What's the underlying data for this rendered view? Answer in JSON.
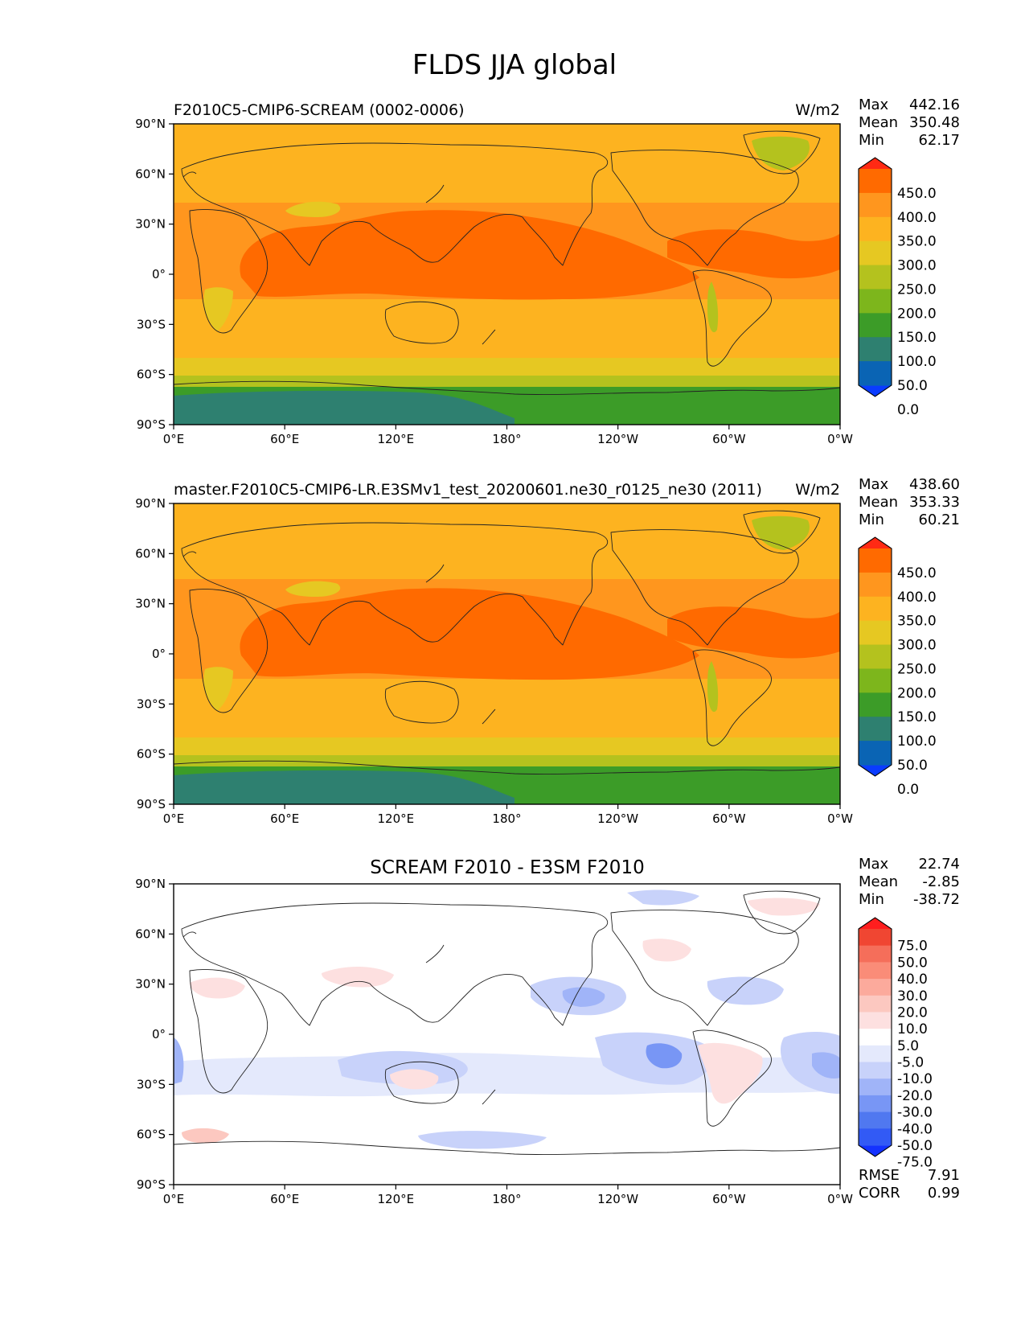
{
  "figure": {
    "title": "FLDS JJA global"
  },
  "axes": {
    "lat_labels": [
      "90°N",
      "60°N",
      "30°N",
      "0°",
      "30°S",
      "60°S",
      "90°S"
    ],
    "lon_labels": [
      "0°E",
      "60°E",
      "120°E",
      "180°",
      "120°W",
      "60°W",
      "0°W"
    ]
  },
  "palettes": {
    "abs": [
      "#0a3cff",
      "#0a64b4",
      "#2e8070",
      "#3c9c28",
      "#7db61c",
      "#b4c21e",
      "#e6c822",
      "#fdb320",
      "#ff961e",
      "#ff6a00",
      "#ff2a14"
    ],
    "diff": [
      "#1432ff",
      "#325af5",
      "#5078f0",
      "#7896f5",
      "#a0b4f8",
      "#c8d2fa",
      "#e4e9fc",
      "#ffffff",
      "#fde0e0",
      "#fcc8c0",
      "#fcaa9c",
      "#fa8c78",
      "#f56e5a",
      "#f04632",
      "#ff1e1e"
    ]
  },
  "panels": [
    {
      "left_title": "F2010C5-CMIP6-SCREAM (0002-0006)",
      "right_title": "W/m2",
      "stats": {
        "max_label": "Max",
        "max": "442.16",
        "mean_label": "Mean",
        "mean": "350.48",
        "min_label": "Min",
        "min": "62.17"
      },
      "colorbar_labels": [
        "450.0",
        "400.0",
        "350.0",
        "300.0",
        "250.0",
        "200.0",
        "150.0",
        "100.0",
        "50.0",
        "0.0"
      ]
    },
    {
      "left_title": "master.F2010C5-CMIP6-LR.E3SMv1_test_20200601.ne30_r0125_ne30 (2011)",
      "right_title": "W/m2",
      "stats": {
        "max_label": "Max",
        "max": "438.60",
        "mean_label": "Mean",
        "mean": "353.33",
        "min_label": "Min",
        "min": "60.21"
      },
      "colorbar_labels": [
        "450.0",
        "400.0",
        "350.0",
        "300.0",
        "250.0",
        "200.0",
        "150.0",
        "100.0",
        "50.0",
        "0.0"
      ]
    },
    {
      "center_title": "SCREAM F2010 - E3SM F2010",
      "stats": {
        "max_label": "Max",
        "max": "22.74",
        "mean_label": "Mean",
        "mean": "-2.85",
        "min_label": "Min",
        "min": "-38.72"
      },
      "colorbar_labels": [
        "75.0",
        "50.0",
        "40.0",
        "30.0",
        "20.0",
        "10.0",
        "5.0",
        "-5.0",
        "-10.0",
        "-20.0",
        "-30.0",
        "-40.0",
        "-50.0",
        "-75.0"
      ],
      "metrics": {
        "rmse_label": "RMSE",
        "rmse": "7.91",
        "corr_label": "CORR",
        "corr": "0.99"
      }
    }
  ],
  "chart_data": {
    "type": "heatmap",
    "title": "FLDS JJA global",
    "units": "W/m2",
    "x_range": [
      "0°E",
      "0°W"
    ],
    "y_range": [
      "90°S",
      "90°N"
    ],
    "panels": [
      {
        "name": "F2010C5-CMIP6-SCREAM (0002-0006)",
        "max": 442.16,
        "mean": 350.48,
        "min": 62.17,
        "levels": [
          0,
          50,
          100,
          150,
          200,
          250,
          300,
          350,
          400,
          450
        ]
      },
      {
        "name": "master.F2010C5-CMIP6-LR.E3SMv1_test_20200601.ne30_r0125_ne30 (2011)",
        "max": 438.6,
        "mean": 353.33,
        "min": 60.21,
        "levels": [
          0,
          50,
          100,
          150,
          200,
          250,
          300,
          350,
          400,
          450
        ]
      },
      {
        "name": "SCREAM F2010 - E3SM F2010",
        "max": 22.74,
        "mean": -2.85,
        "min": -38.72,
        "levels": [
          -75,
          -50,
          -40,
          -30,
          -20,
          -10,
          -5,
          5,
          10,
          20,
          30,
          40,
          50,
          75
        ],
        "rmse": 7.91,
        "corr": 0.99
      }
    ]
  }
}
